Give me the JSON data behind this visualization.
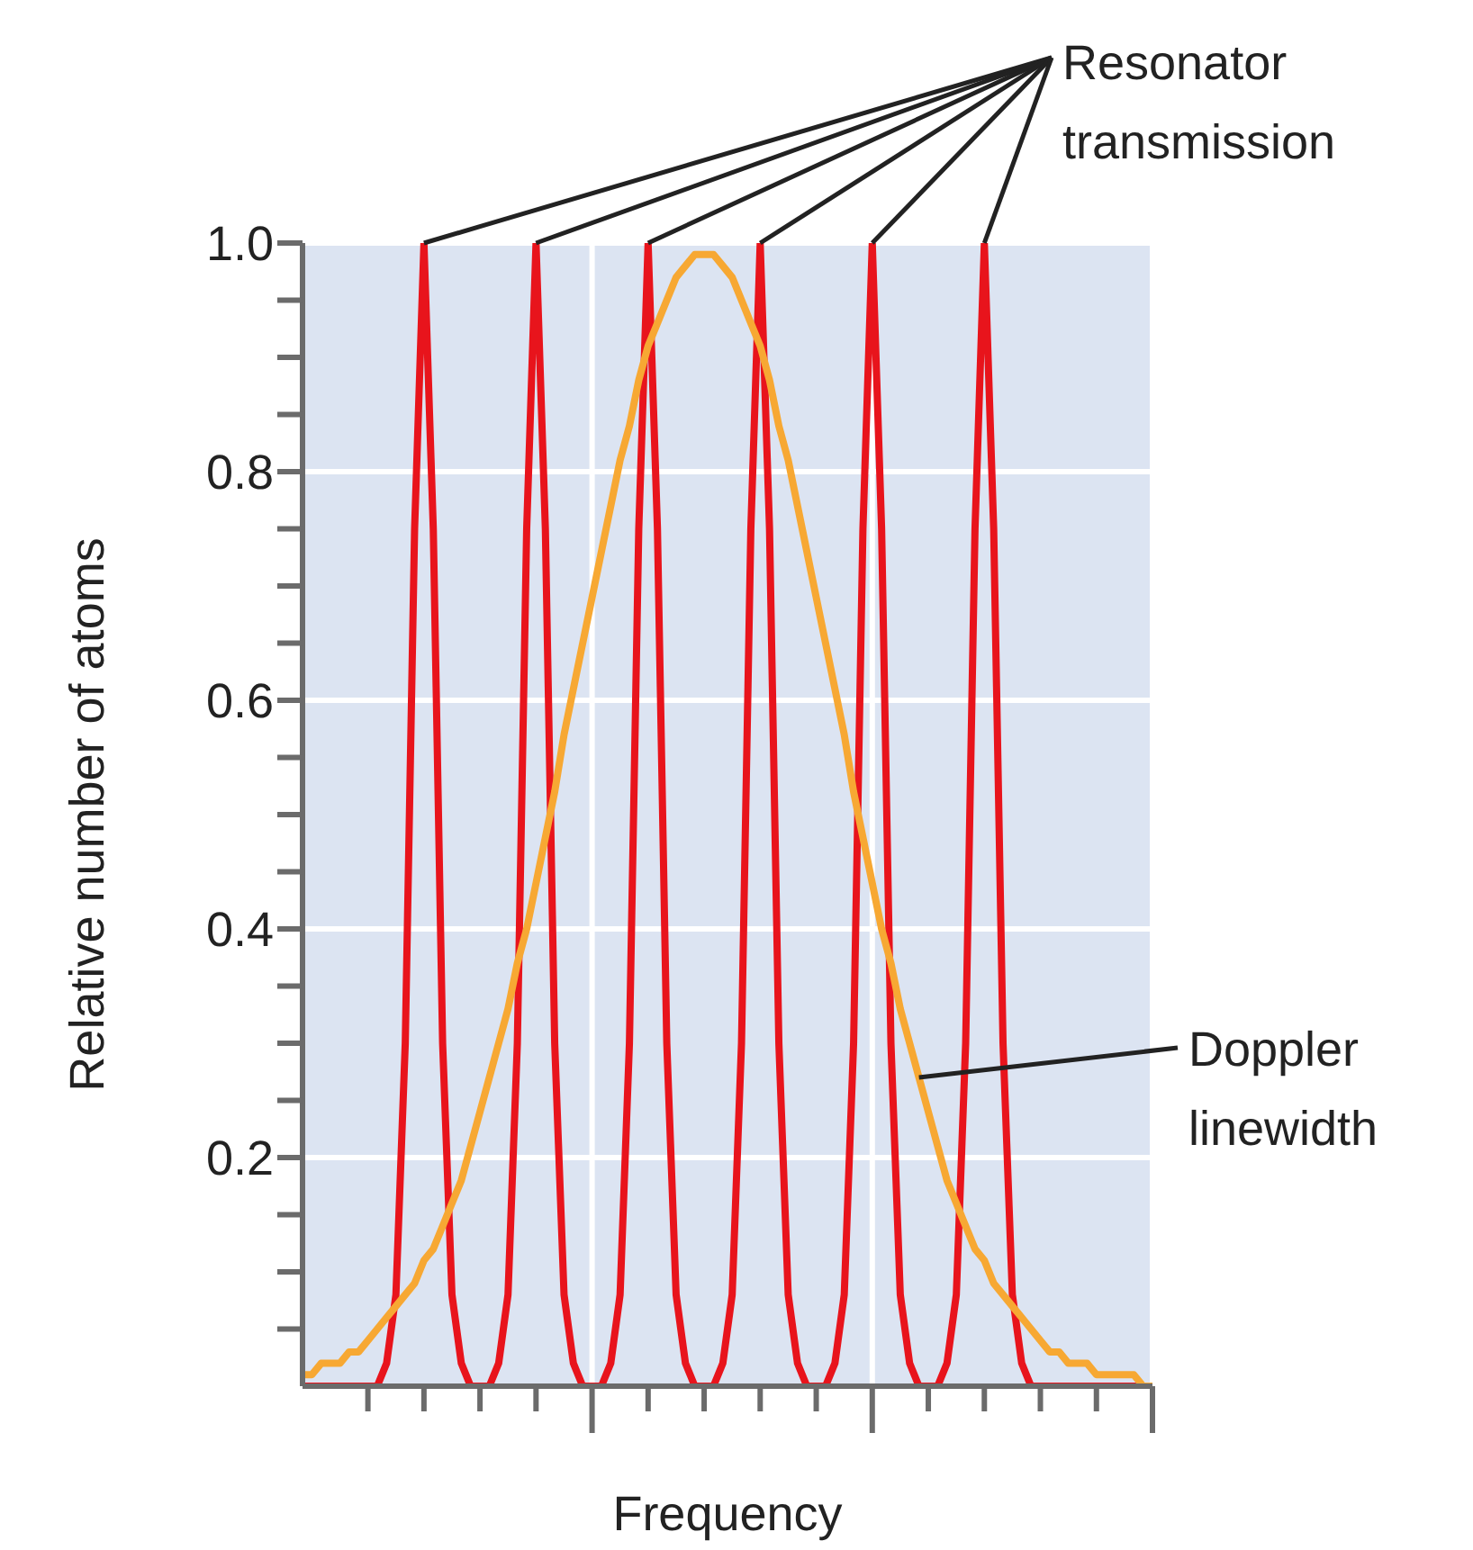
{
  "chart_data": {
    "type": "line",
    "xlabel": "Frequency",
    "ylabel": "Relative number of atoms",
    "categories": [
      null,
      null,
      null,
      null,
      null,
      null,
      null,
      null,
      null,
      null,
      null,
      null,
      null,
      null,
      null,
      null,
      null,
      null,
      null,
      null,
      null,
      null,
      null,
      null,
      null,
      null,
      null,
      null,
      null,
      null,
      null,
      null,
      null,
      null,
      null,
      null,
      null,
      null,
      null,
      null,
      null,
      null,
      null,
      null,
      null,
      null,
      null,
      null,
      null,
      null,
      null,
      null,
      null,
      null,
      null,
      null,
      null,
      null,
      null,
      null,
      null,
      null,
      null,
      null,
      null,
      null,
      null,
      null,
      null,
      null,
      null,
      null,
      null,
      null,
      null,
      null,
      null,
      null,
      null,
      null,
      null,
      null,
      null,
      null,
      null,
      null,
      null,
      null,
      null,
      null,
      null,
      null
    ],
    "series": [
      {
        "name": "Resonator transmission",
        "color": "#e8141c",
        "values": [
          0,
          0,
          0,
          0,
          0,
          0,
          0,
          0,
          0,
          0.02,
          0.08,
          0.3,
          0.75,
          1,
          0.75,
          0.3,
          0.08,
          0.02,
          0,
          0,
          0,
          0.02,
          0.08,
          0.3,
          0.75,
          1,
          0.75,
          0.3,
          0.08,
          0.02,
          0,
          0,
          0,
          0.02,
          0.08,
          0.3,
          0.75,
          1,
          0.75,
          0.3,
          0.08,
          0.02,
          0,
          0,
          0,
          0.02,
          0.08,
          0.3,
          0.75,
          1,
          0.75,
          0.3,
          0.08,
          0.02,
          0,
          0,
          0,
          0.02,
          0.08,
          0.3,
          0.75,
          1,
          0.75,
          0.3,
          0.08,
          0.02,
          0,
          0,
          0,
          0.02,
          0.08,
          0.3,
          0.75,
          1,
          0.75,
          0.3,
          0.08,
          0.02,
          0,
          0,
          0,
          0,
          0,
          0,
          0,
          0,
          0,
          0,
          0,
          0,
          0,
          0
        ]
      },
      {
        "name": "Doppler linewidth",
        "color": "#f7a833",
        "values": [
          0.01,
          0.01,
          0.02,
          0.02,
          0.02,
          0.03,
          0.03,
          0.04,
          0.05,
          0.06,
          0.07,
          0.08,
          0.09,
          0.11,
          0.12,
          0.14,
          0.16,
          0.18,
          0.21,
          0.24,
          0.27,
          0.3,
          0.33,
          0.37,
          0.4,
          0.44,
          0.48,
          0.52,
          0.57,
          0.61,
          0.65,
          0.69,
          0.73,
          0.77,
          0.81,
          0.84,
          0.88,
          0.91,
          0.93,
          0.95,
          0.97,
          0.98,
          0.99,
          0.99,
          0.99,
          0.98,
          0.97,
          0.95,
          0.93,
          0.91,
          0.88,
          0.84,
          0.81,
          0.77,
          0.73,
          0.69,
          0.65,
          0.61,
          0.57,
          0.52,
          0.48,
          0.44,
          0.4,
          0.37,
          0.33,
          0.3,
          0.27,
          0.24,
          0.21,
          0.18,
          0.16,
          0.14,
          0.12,
          0.11,
          0.09,
          0.08,
          0.07,
          0.06,
          0.05,
          0.04,
          0.03,
          0.03,
          0.02,
          0.02,
          0.02,
          0.01,
          0.01,
          0.01,
          0.01,
          0.01,
          0,
          0
        ]
      }
    ],
    "ylim": [
      0,
      1
    ],
    "yticks": [
      {
        "value": 0.05,
        "label": null
      },
      {
        "value": 0.1,
        "label": null
      },
      {
        "value": 0.15,
        "label": null
      },
      0.2,
      {
        "value": 0.25,
        "label": null
      },
      {
        "value": 0.3,
        "label": null
      },
      {
        "value": 0.35,
        "label": null
      },
      0.4,
      {
        "value": 0.45,
        "label": null
      },
      {
        "value": 0.5,
        "label": null
      },
      {
        "value": 0.55,
        "label": null
      },
      0.6,
      {
        "value": 0.65,
        "label": null
      },
      {
        "value": 0.7,
        "label": null
      },
      {
        "value": 0.75,
        "label": null
      },
      0.8,
      {
        "value": 0.85,
        "label": null
      },
      {
        "value": 0.9,
        "label": null
      },
      {
        "value": 0.95,
        "label": null
      },
      {
        "value": 1,
        "label": "1.0"
      }
    ],
    "grid": true,
    "marker": "none",
    "line_style": "solid",
    "legend": false
  }
}
